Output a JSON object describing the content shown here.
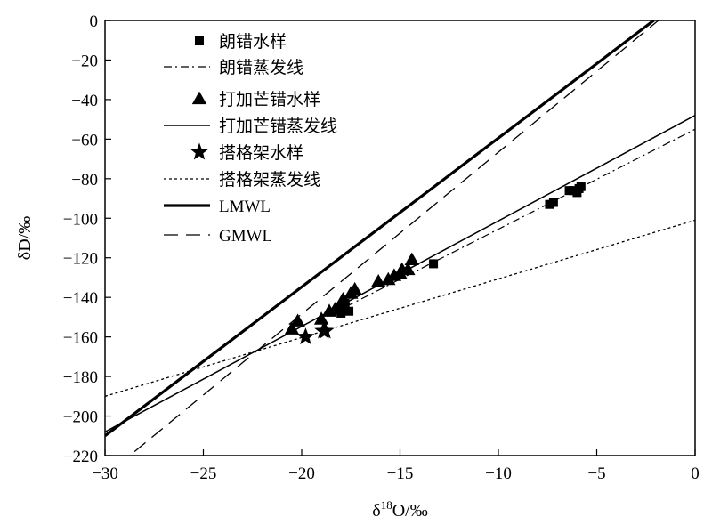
{
  "chart_data": {
    "type": "scatter",
    "xlabel": "δ18O/‰",
    "ylabel": "δD/‰",
    "xlim": [
      -30,
      0
    ],
    "ylim": [
      -220,
      0
    ],
    "x_ticks": [
      -30,
      -25,
      -20,
      -15,
      -10,
      -5,
      0
    ],
    "y_ticks": [
      0,
      -20,
      -40,
      -60,
      -80,
      -100,
      -120,
      -140,
      -160,
      -180,
      -200,
      -220
    ],
    "x_tick_labels": [
      "−30",
      "−25",
      "−20",
      "−15",
      "−10",
      "−5",
      "0"
    ],
    "y_tick_labels": [
      "0",
      "−20",
      "−40",
      "−60",
      "−80",
      "−100",
      "−120",
      "−140",
      "−160",
      "−180",
      "−200",
      "−220"
    ],
    "grid": false,
    "legend_position": "top-left",
    "series": [
      {
        "name": "朗错水样",
        "kind": "points",
        "marker": "square",
        "x": [
          -13.3,
          -7.4,
          -7.2,
          -6.4,
          -6.2,
          -6.0,
          -5.9,
          -5.8,
          -18.0,
          -17.8,
          -17.6,
          -17.8
        ],
        "y": [
          -123,
          -93,
          -92,
          -86,
          -86,
          -87,
          -85,
          -84,
          -148,
          -144,
          -147,
          -143
        ]
      },
      {
        "name": "朗错蒸发线",
        "kind": "line",
        "style": "dashdot",
        "x": [
          -18.5,
          0
        ],
        "y": [
          -148.5,
          -55
        ]
      },
      {
        "name": "打加芒错水样",
        "kind": "points",
        "marker": "triangle",
        "x": [
          -20.5,
          -20.2,
          -19.0,
          -18.6,
          -18.3,
          -18.0,
          -17.9,
          -17.5,
          -17.3,
          -16.1,
          -15.6,
          -15.3,
          -15.0,
          -14.9,
          -14.6,
          -14.4
        ],
        "y": [
          -156,
          -152,
          -151,
          -147,
          -146,
          -144,
          -141,
          -138,
          -136,
          -132,
          -131,
          -129,
          -128,
          -126,
          -126,
          -121
        ]
      },
      {
        "name": "打加芒错蒸发线",
        "kind": "line",
        "style": "solid",
        "x": [
          -30,
          0
        ],
        "y": [
          -208,
          -48
        ]
      },
      {
        "name": "搭格架水样",
        "kind": "points",
        "marker": "star",
        "x": [
          -19.8,
          -18.9,
          -18.8
        ],
        "y": [
          -160,
          -157,
          -157
        ]
      },
      {
        "name": "搭格架蒸发线",
        "kind": "line",
        "style": "dotted",
        "x": [
          -30,
          0
        ],
        "y": [
          -190,
          -101
        ]
      },
      {
        "name": "LMWL",
        "kind": "line",
        "style": "thick",
        "x": [
          -30,
          -2.1
        ],
        "y": [
          -210,
          0
        ]
      },
      {
        "name": "GMWL",
        "kind": "line",
        "style": "longdash",
        "x": [
          -28.5,
          -1.5
        ],
        "y": [
          -218,
          3
        ]
      }
    ]
  }
}
